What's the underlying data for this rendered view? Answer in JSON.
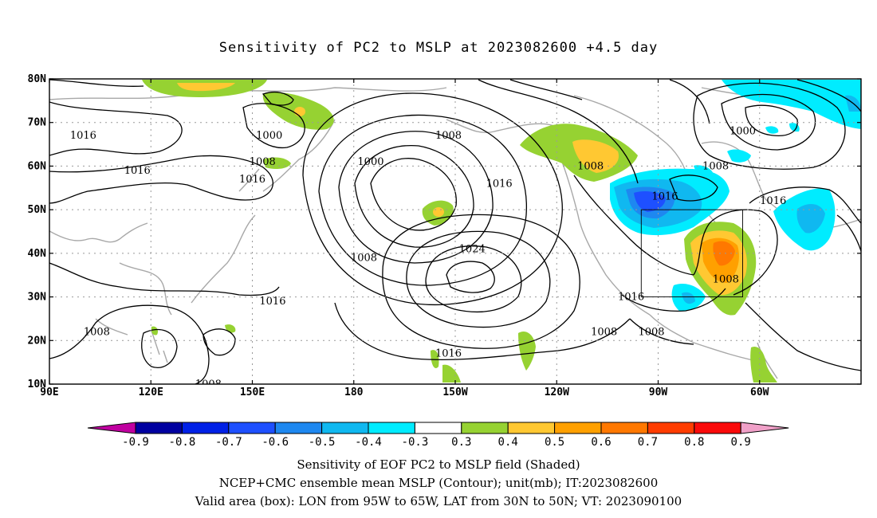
{
  "title": "Sensitivity of PC2 to MSLP at 2023082600 +4.5 day",
  "map": {
    "lon_labels": [
      "90E",
      "120E",
      "150E",
      "180",
      "150W",
      "120W",
      "90W",
      "60W"
    ],
    "lat_labels": [
      "80N",
      "70N",
      "60N",
      "50N",
      "40N",
      "30N",
      "20N",
      "10N"
    ],
    "contour_labels": [
      {
        "text": "1016",
        "lon": 100,
        "lat": 67
      },
      {
        "text": "1000",
        "lon": 155,
        "lat": 67
      },
      {
        "text": "1008",
        "lon": 153,
        "lat": 61
      },
      {
        "text": "1016",
        "lon": 116,
        "lat": 59
      },
      {
        "text": "1016",
        "lon": 150,
        "lat": 57
      },
      {
        "text": "1000",
        "lon": -175,
        "lat": 61
      },
      {
        "text": "1008",
        "lon": -152,
        "lat": 67
      },
      {
        "text": "1016",
        "lon": -137,
        "lat": 56
      },
      {
        "text": "1024",
        "lon": -145,
        "lat": 41
      },
      {
        "text": "1008",
        "lon": -177,
        "lat": 39
      },
      {
        "text": "1016",
        "lon": 156,
        "lat": 29
      },
      {
        "text": "1008",
        "lon": 104,
        "lat": 22
      },
      {
        "text": "1008",
        "lon": -110,
        "lat": 60
      },
      {
        "text": "1000",
        "lon": -65,
        "lat": 68
      },
      {
        "text": "1008",
        "lon": -73,
        "lat": 60
      },
      {
        "text": "1016",
        "lon": -88,
        "lat": 53
      },
      {
        "text": "1016",
        "lon": -56,
        "lat": 52
      },
      {
        "text": "1008",
        "lon": -70,
        "lat": 34
      },
      {
        "text": "1016",
        "lon": -98,
        "lat": 30
      },
      {
        "text": "1008",
        "lon": -106,
        "lat": 22
      },
      {
        "text": "1008",
        "lon": -92,
        "lat": 22
      },
      {
        "text": "1016",
        "lon": -152,
        "lat": 17
      },
      {
        "text": "1008",
        "lon": 137,
        "lat": 10
      }
    ],
    "box": {
      "lon_from": -95,
      "lon_to": -65,
      "lat_from": 30,
      "lat_to": 50
    }
  },
  "colorbar": {
    "labels": [
      "-0.9",
      "-0.8",
      "-0.7",
      "-0.6",
      "-0.5",
      "-0.4",
      "-0.3",
      "0.3",
      "0.4",
      "0.5",
      "0.6",
      "0.7",
      "0.8",
      "0.9"
    ],
    "colors": [
      "#0000a0",
      "#0020e6",
      "#1e50ff",
      "#1e88f0",
      "#10b8f0",
      "#00ecff",
      "#ffffff",
      "#96d232",
      "#ffc832",
      "#ffa000",
      "#ff7800",
      "#ff3c00",
      "#fa0a0a"
    ],
    "low_end_color": "#c000a0",
    "high_end_color": "#f0a0c8"
  },
  "caption": {
    "line1": "Sensitivity of EOF PC2 to MSLP field (Shaded)",
    "line2": "NCEP+CMC ensemble mean MSLP (Contour); unit(mb); IT:2023082600",
    "line3": "Valid area (box): LON from 95W to 65W, LAT from 30N to 50N; VT: 2023090100"
  }
}
